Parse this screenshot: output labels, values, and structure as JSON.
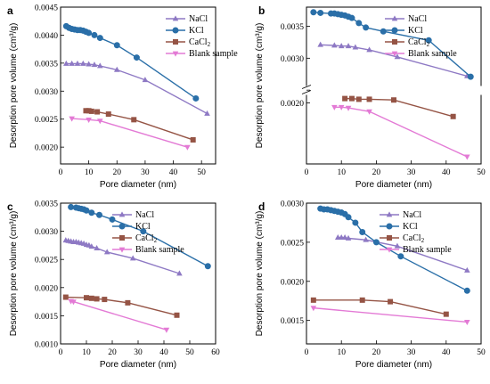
{
  "colors": {
    "NaCl": "#8e79c4",
    "KCl": "#2a6fa8",
    "CaCl2": "#955445",
    "Blank": "#e37ad5"
  },
  "markers": {
    "NaCl": "triangle-up",
    "KCl": "circle",
    "CaCl2": "square",
    "Blank": "triangle-down"
  },
  "chart_data": [
    {
      "panel": "a",
      "type": "line",
      "xlabel": "Pore diameter (nm)",
      "ylabel": "Desorption pore volume (cm³/g)",
      "xlim": [
        0,
        55
      ],
      "ylim": [
        0.0017,
        0.0045
      ],
      "xticks": [
        0,
        10,
        20,
        30,
        40,
        50
      ],
      "xtick_labels": [
        "0",
        "10",
        "20",
        "30",
        "40",
        "50"
      ],
      "yticks": [
        0.002,
        0.0025,
        0.003,
        0.0035,
        0.004,
        0.0045
      ],
      "ytick_labels": [
        "0.0020",
        "0.0025",
        "0.0030",
        "0.0035",
        "0.0040",
        "0.0045"
      ],
      "break_at": null,
      "series": [
        {
          "key": "NaCl",
          "name": "NaCl",
          "x": [
            2,
            4,
            6,
            8,
            10,
            12,
            14,
            20,
            30,
            52
          ],
          "y": [
            0.00349,
            0.00349,
            0.00349,
            0.00349,
            0.00348,
            0.00347,
            0.00345,
            0.00338,
            0.0032,
            0.0026
          ]
        },
        {
          "key": "KCl",
          "name": "KCl",
          "x": [
            2,
            3,
            4,
            5,
            6,
            7,
            8,
            9,
            10,
            12,
            14,
            20,
            27,
            48
          ],
          "y": [
            0.00416,
            0.00413,
            0.00411,
            0.0041,
            0.00409,
            0.00409,
            0.00408,
            0.00406,
            0.00404,
            0.004,
            0.00395,
            0.00382,
            0.0036,
            0.00287
          ]
        },
        {
          "key": "CaCl2",
          "name": "CaCl2",
          "x": [
            9,
            10,
            11,
            13,
            17,
            26,
            47
          ],
          "y": [
            0.00265,
            0.00265,
            0.00264,
            0.00263,
            0.00259,
            0.00249,
            0.00213
          ]
        },
        {
          "key": "Blank",
          "name": "Blank sample",
          "x": [
            4,
            10,
            14,
            45
          ],
          "y": [
            0.00251,
            0.00249,
            0.00247,
            0.002
          ]
        }
      ]
    },
    {
      "panel": "b",
      "type": "line",
      "xlabel": "Pore diameter (nm)",
      "ylabel": "Desorption pore volume (cm³/g)",
      "xlim": [
        0,
        50
      ],
      "ylim": null,
      "xticks": [
        0,
        10,
        20,
        30,
        40,
        50
      ],
      "xtick_labels": [
        "0",
        "10",
        "20",
        "30",
        "40",
        "50"
      ],
      "yticks": [
        0.002,
        0.0025,
        0.003,
        0.0035
      ],
      "ytick_labels": [
        "0.0020",
        "",
        "0.0030",
        "0.0035"
      ],
      "break_at": [
        0.00208,
        0.0026
      ],
      "series": [
        {
          "key": "NaCl",
          "name": "NaCl",
          "x": [
            4,
            8,
            10,
            12,
            14,
            18,
            26,
            46
          ],
          "y": [
            0.00321,
            0.0032,
            0.00319,
            0.00319,
            0.00317,
            0.00313,
            0.00302,
            0.00272
          ]
        },
        {
          "key": "KCl",
          "name": "KCl",
          "x": [
            2,
            4,
            7,
            8,
            9,
            10,
            11,
            12,
            13,
            15,
            17,
            22,
            35,
            47
          ],
          "y": [
            0.00372,
            0.00371,
            0.0037,
            0.0037,
            0.00369,
            0.00368,
            0.00367,
            0.00365,
            0.00363,
            0.00355,
            0.00348,
            0.00342,
            0.00328,
            0.00271
          ]
        },
        {
          "key": "CaCl2",
          "name": "CaCl2",
          "x": [
            11,
            13,
            15,
            18,
            25,
            42
          ],
          "y": [
            0.00206,
            0.00206,
            0.00205,
            0.00205,
            0.00204,
            0.00181
          ]
        },
        {
          "key": "Blank",
          "name": "Blank sample",
          "x": [
            8,
            10,
            12,
            18,
            46
          ],
          "y": [
            0.00194,
            0.00194,
            0.00193,
            0.00188,
            0.00125
          ]
        }
      ]
    },
    {
      "panel": "c",
      "type": "line",
      "xlabel": "Pore diameter (nm)",
      "ylabel": "Desorption pore volume (cm³/g)",
      "xlim": [
        0,
        60
      ],
      "ylim": [
        0.001,
        0.0035
      ],
      "xticks": [
        0,
        10,
        20,
        30,
        40,
        50,
        60
      ],
      "xtick_labels": [
        "0",
        "10",
        "20",
        "30",
        "40",
        "50",
        "60"
      ],
      "yticks": [
        0.001,
        0.0015,
        0.002,
        0.0025,
        0.003,
        0.0035
      ],
      "ytick_labels": [
        "0.0010",
        "0.0015",
        "0.0020",
        "0.0025",
        "0.0030",
        "0.0035"
      ],
      "break_at": null,
      "series": [
        {
          "key": "NaCl",
          "name": "NaCl",
          "x": [
            2,
            3,
            4,
            5,
            6,
            7,
            8,
            9,
            10,
            11,
            12,
            14,
            18,
            28,
            46
          ],
          "y": [
            0.00284,
            0.00283,
            0.00282,
            0.00281,
            0.00281,
            0.0028,
            0.00279,
            0.00278,
            0.00276,
            0.00275,
            0.00273,
            0.0027,
            0.00263,
            0.00252,
            0.00225
          ]
        },
        {
          "key": "KCl",
          "name": "KCl",
          "x": [
            4,
            6,
            7,
            8,
            9,
            10,
            12,
            15,
            20,
            32,
            57
          ],
          "y": [
            0.00343,
            0.00342,
            0.00341,
            0.0034,
            0.00339,
            0.00337,
            0.00333,
            0.00329,
            0.00321,
            0.003,
            0.00238
          ]
        },
        {
          "key": "CaCl2",
          "name": "CaCl2",
          "x": [
            2,
            10,
            12,
            14,
            17,
            26,
            45
          ],
          "y": [
            0.00183,
            0.00182,
            0.00181,
            0.0018,
            0.00179,
            0.00173,
            0.00151
          ]
        },
        {
          "key": "Blank",
          "name": "Blank sample",
          "x": [
            4,
            5,
            41
          ],
          "y": [
            0.00176,
            0.00175,
            0.00125
          ]
        }
      ]
    },
    {
      "panel": "d",
      "type": "line",
      "xlabel": "Pore diameter (nm)",
      "ylabel": "Desorption pore volume (cm³/g)",
      "xlim": [
        0,
        50
      ],
      "ylim": [
        0.0012,
        0.003
      ],
      "xticks": [
        0,
        10,
        20,
        30,
        40,
        50
      ],
      "xtick_labels": [
        "0",
        "10",
        "20",
        "30",
        "40",
        "50"
      ],
      "yticks": [
        0.0015,
        0.002,
        0.0025,
        0.003
      ],
      "ytick_labels": [
        "0.0015",
        "0.0020",
        "0.0025",
        "0.0030"
      ],
      "break_at": null,
      "series": [
        {
          "key": "NaCl",
          "name": "NaCl",
          "x": [
            9,
            10,
            11,
            12,
            17,
            26,
            46
          ],
          "y": [
            0.00256,
            0.00256,
            0.00256,
            0.00255,
            0.00253,
            0.00245,
            0.00214
          ]
        },
        {
          "key": "KCl",
          "name": "KCl",
          "x": [
            4,
            5,
            6,
            7,
            8,
            9,
            10,
            11,
            12,
            14,
            16,
            20,
            27,
            46
          ],
          "y": [
            0.00293,
            0.00292,
            0.00292,
            0.00291,
            0.0029,
            0.00289,
            0.00288,
            0.00286,
            0.00282,
            0.00275,
            0.00263,
            0.0025,
            0.00232,
            0.00188
          ]
        },
        {
          "key": "CaCl2",
          "name": "CaCl2",
          "x": [
            2,
            16,
            24,
            40
          ],
          "y": [
            0.00176,
            0.00176,
            0.00174,
            0.00158
          ]
        },
        {
          "key": "Blank",
          "name": "Blank sample",
          "x": [
            2,
            46
          ],
          "y": [
            0.00166,
            0.00148
          ]
        }
      ]
    }
  ]
}
